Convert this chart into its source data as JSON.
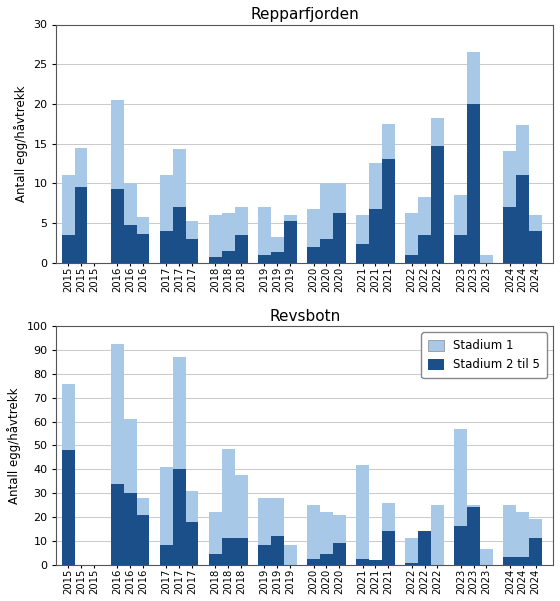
{
  "reppar": {
    "title": "Repparfjorden",
    "ylabel": "Antall egg/håvtrekk",
    "ylim": [
      0,
      30
    ],
    "yticks": [
      0,
      5,
      10,
      15,
      20,
      25,
      30
    ],
    "labels": [
      "2015",
      "2015",
      "2015",
      "2016",
      "2016",
      "2016",
      "2017",
      "2017",
      "2017",
      "2018",
      "2018",
      "2018",
      "2019",
      "2019",
      "2019",
      "2020",
      "2020",
      "2020",
      "2021",
      "2021",
      "2021",
      "2022",
      "2022",
      "2022",
      "2023",
      "2023",
      "2023",
      "2024",
      "2024",
      "2024"
    ],
    "stad1_total": [
      11,
      14.5,
      0,
      20.5,
      10,
      5.8,
      11,
      14.3,
      5.2,
      6,
      6.3,
      7,
      7,
      3.2,
      6,
      6.7,
      10,
      10,
      6,
      12.5,
      17.5,
      6.3,
      8.3,
      18.2,
      8.5,
      26.5,
      1,
      14,
      17.3,
      6
    ],
    "stad2": [
      3.5,
      9.5,
      0,
      9.3,
      4.7,
      3.6,
      4,
      7,
      3,
      0.7,
      1.5,
      3.5,
      1,
      1.3,
      5.2,
      2,
      3,
      6.3,
      2.3,
      6.7,
      13,
      1,
      3.5,
      14.7,
      3.5,
      20,
      0,
      7,
      11,
      4
    ]
  },
  "revsbotn": {
    "title": "Revsbotn",
    "ylabel": "Antall egg/håvtrekk",
    "ylim": [
      0,
      100
    ],
    "yticks": [
      0,
      10,
      20,
      30,
      40,
      50,
      60,
      70,
      80,
      90,
      100
    ],
    "labels": [
      "2015",
      "2015",
      "2015",
      "2016",
      "2016",
      "2016",
      "2017",
      "2017",
      "2017",
      "2018",
      "2018",
      "2018",
      "2019",
      "2019",
      "2019",
      "2020",
      "2020",
      "2020",
      "2021",
      "2021",
      "2021",
      "2022",
      "2022",
      "2022",
      "2023",
      "2023",
      "2023",
      "2024",
      "2024",
      "2024"
    ],
    "stad1_total": [
      76,
      0,
      0,
      92.5,
      61,
      28,
      41,
      87,
      31,
      22,
      48.5,
      37.5,
      28,
      28,
      8,
      25,
      22,
      21,
      42,
      0,
      26,
      11,
      12,
      25,
      57,
      25,
      6.5,
      25,
      22,
      19
    ],
    "stad2": [
      48,
      0,
      0,
      34,
      30,
      21,
      8,
      40,
      18,
      4.5,
      11,
      11,
      8,
      12,
      0,
      2.5,
      4.5,
      9,
      2.5,
      2,
      14,
      0.5,
      14,
      0,
      16,
      24,
      0,
      3,
      3,
      11
    ]
  },
  "color_stad1": "#a8c8e8",
  "color_stad2": "#1a4f8a",
  "legend_stad1": "Stadium 1",
  "legend_stad2": "Stadium 2 til 5",
  "n_groups": 10,
  "bars_per_group": 3
}
